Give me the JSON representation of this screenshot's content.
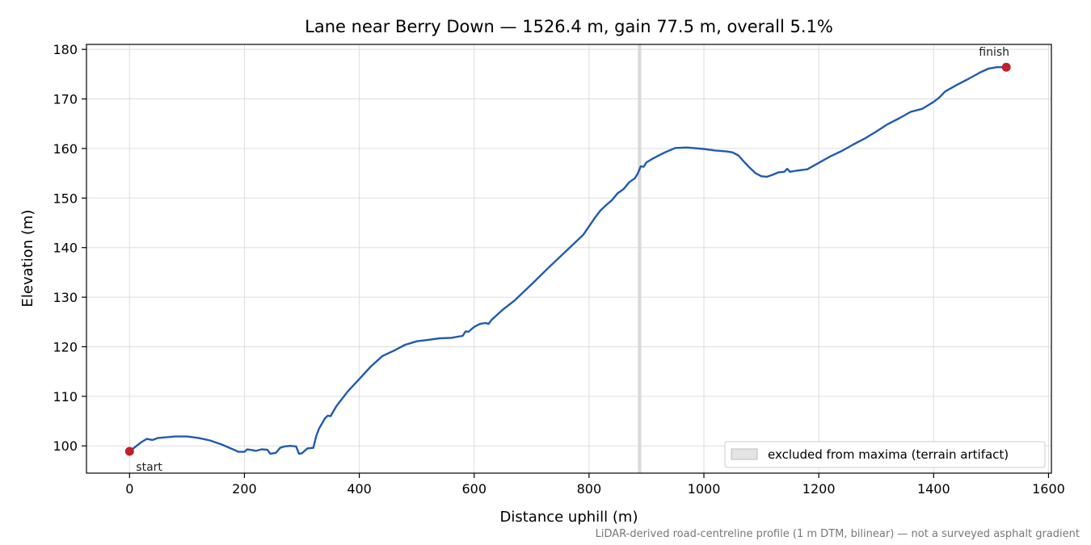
{
  "chart_data": {
    "type": "line",
    "title": "Lane near Berry Down — 1526.4 m, gain 77.5 m, overall 5.1%",
    "xlabel": "Distance uphill (m)",
    "ylabel": "Elevation (m)",
    "xlim": [
      -75,
      1605
    ],
    "ylim": [
      94.5,
      181.0
    ],
    "xticks": [
      0,
      200,
      400,
      600,
      800,
      1000,
      1200,
      1400,
      1600
    ],
    "yticks": [
      100,
      110,
      120,
      130,
      140,
      150,
      160,
      170,
      180
    ],
    "grid": true,
    "legend_placement": "lower-right",
    "series": [
      {
        "color": "#1f5bb0",
        "x": [
          0,
          10,
          20,
          30,
          40,
          50,
          60,
          80,
          100,
          120,
          140,
          160,
          180,
          190,
          200,
          205,
          210,
          220,
          230,
          240,
          245,
          255,
          262,
          270,
          280,
          290,
          295,
          300,
          310,
          320,
          325,
          330,
          340,
          345,
          350,
          360,
          380,
          400,
          420,
          440,
          460,
          480,
          500,
          520,
          540,
          560,
          570,
          580,
          585,
          590,
          600,
          610,
          620,
          625,
          630,
          650,
          670,
          700,
          730,
          760,
          790,
          800,
          810,
          820,
          830,
          840,
          850,
          860,
          870,
          880,
          885,
          890,
          895,
          900,
          910,
          920,
          930,
          950,
          970,
          1000,
          1020,
          1040,
          1050,
          1060,
          1070,
          1080,
          1090,
          1100,
          1110,
          1120,
          1130,
          1140,
          1145,
          1150,
          1160,
          1180,
          1200,
          1220,
          1240,
          1260,
          1280,
          1300,
          1320,
          1340,
          1360,
          1380,
          1400,
          1410,
          1420,
          1440,
          1460,
          1480,
          1495,
          1510,
          1520,
          1526.4
        ],
        "y": [
          98.9,
          99.8,
          100.7,
          101.4,
          101.2,
          101.6,
          101.7,
          101.9,
          101.9,
          101.6,
          101.1,
          100.3,
          99.3,
          98.8,
          98.8,
          99.3,
          99.2,
          99.0,
          99.3,
          99.2,
          98.4,
          98.6,
          99.6,
          99.9,
          100.0,
          99.9,
          98.4,
          98.5,
          99.5,
          99.6,
          102.0,
          103.5,
          105.5,
          106.1,
          106.0,
          108.0,
          111.0,
          113.5,
          116.0,
          118.1,
          119.2,
          120.4,
          121.1,
          121.4,
          121.7,
          121.8,
          122.0,
          122.2,
          123.1,
          123.0,
          124.0,
          124.6,
          124.8,
          124.6,
          125.4,
          127.5,
          129.3,
          132.6,
          136.0,
          139.3,
          142.6,
          144.3,
          146.0,
          147.5,
          148.6,
          149.6,
          151.0,
          151.8,
          153.2,
          154.0,
          155.0,
          156.4,
          156.3,
          157.2,
          157.9,
          158.5,
          159.1,
          160.1,
          160.2,
          159.9,
          159.6,
          159.4,
          159.2,
          158.6,
          157.3,
          156.1,
          155.0,
          154.4,
          154.3,
          154.7,
          155.2,
          155.3,
          155.9,
          155.3,
          155.5,
          155.8,
          157.1,
          158.4,
          159.5,
          160.8,
          162.0,
          163.4,
          164.9,
          166.1,
          167.4,
          168.0,
          169.4,
          170.3,
          171.5,
          172.8,
          174.0,
          175.3,
          176.1,
          176.4,
          176.4,
          176.4
        ]
      }
    ],
    "markers": [
      {
        "label": "start",
        "x": 0,
        "y": 98.9,
        "color": "#c0202a"
      },
      {
        "label": "finish",
        "x": 1526.4,
        "y": 176.4,
        "color": "#c0202a"
      }
    ],
    "shaded_band": {
      "x_from": 885,
      "x_to": 891,
      "color": "#d6d6d6",
      "label": "excluded from maxima (terrain artifact)"
    },
    "footnote": "LiDAR-derived road-centreline profile (1 m DTM, bilinear) — not a surveyed asphalt gradient"
  }
}
